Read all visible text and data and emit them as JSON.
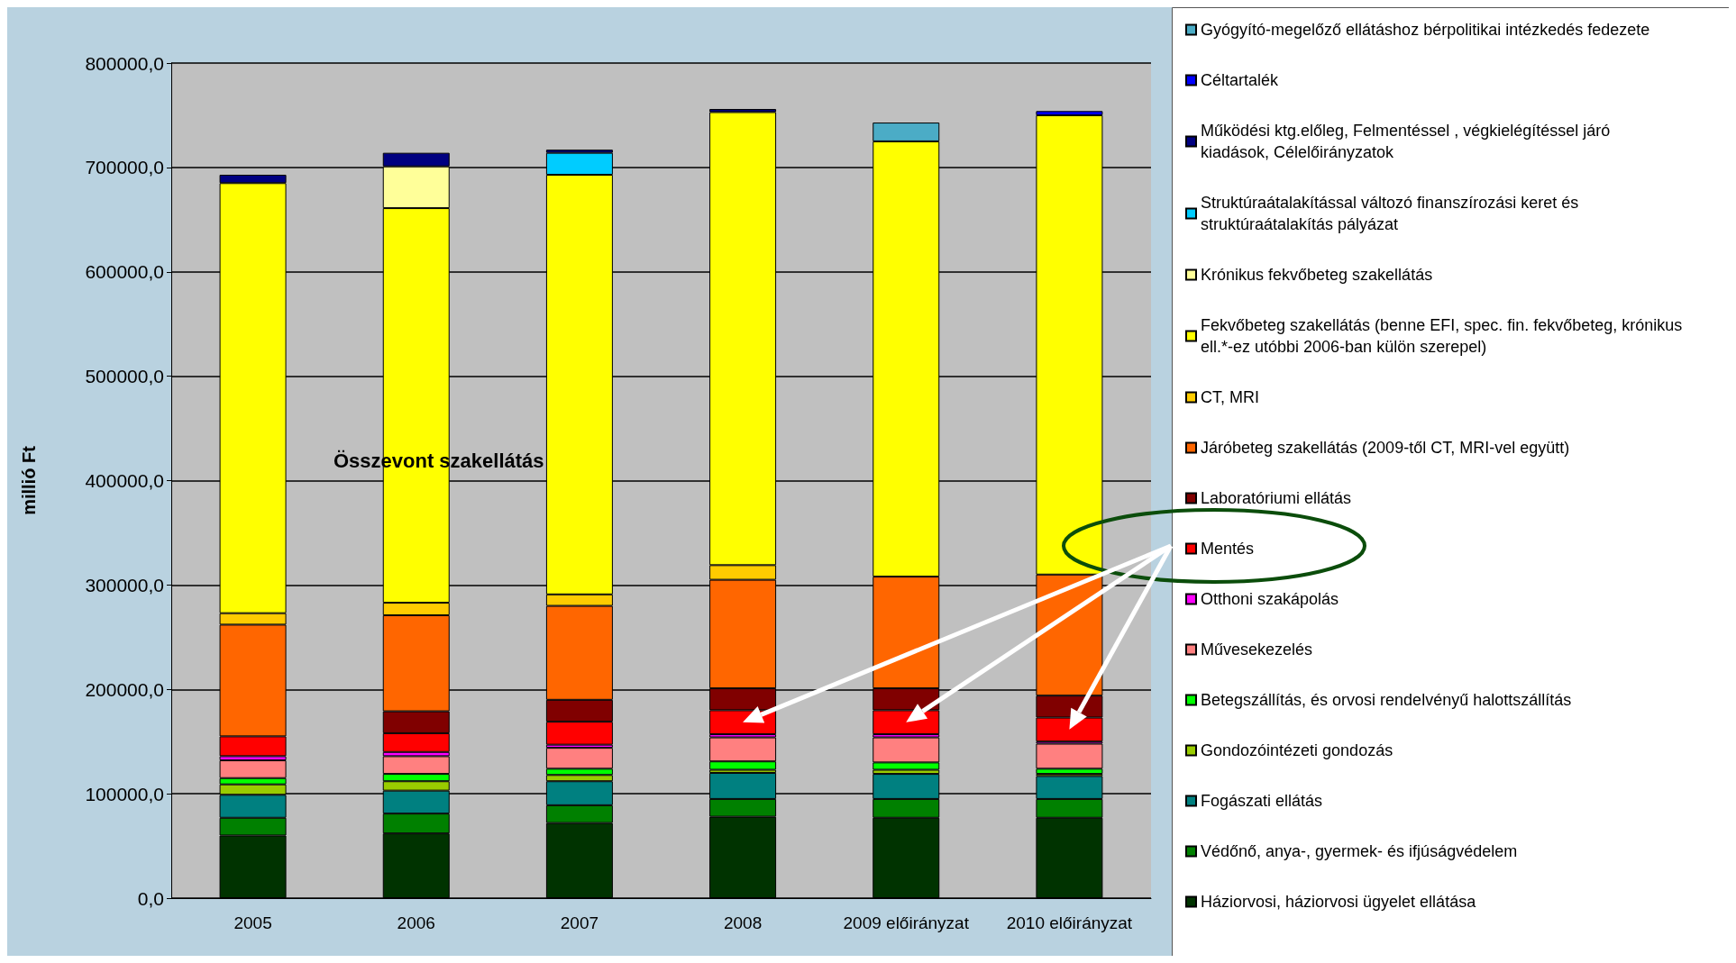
{
  "chart_data": {
    "type": "bar",
    "stacked": true,
    "ylabel": "millió Ft",
    "categories": [
      "2005",
      "2006",
      "2007",
      "2008",
      "2009 előirányzat",
      "2010 előirányzat"
    ],
    "ylim": [
      0,
      800000
    ],
    "yticks": [
      {
        "value": 0,
        "label": "0,0"
      },
      {
        "value": 100000,
        "label": "100000,0"
      },
      {
        "value": 200000,
        "label": "200000,0"
      },
      {
        "value": 300000,
        "label": "300000,0"
      },
      {
        "value": 400000,
        "label": "400000,0"
      },
      {
        "value": 500000,
        "label": "500000,0"
      },
      {
        "value": 600000,
        "label": "600000,0"
      },
      {
        "value": 700000,
        "label": "700000,0"
      },
      {
        "value": 800000,
        "label": "800000,0"
      }
    ],
    "grid": "y",
    "legend": "right",
    "annotations": [
      "Összevont szakellátás"
    ],
    "series": [
      {
        "name": "Háziorvosi, háziorvosi ügyelet ellátása",
        "color": "#003300",
        "values": [
          60000,
          62000,
          72000,
          78000,
          77000,
          77000
        ]
      },
      {
        "name": "Védőnő, anya-, gyermek- és ifjúságvédelem",
        "color": "#008000",
        "values": [
          17000,
          19000,
          17000,
          17000,
          18000,
          18000
        ]
      },
      {
        "name": "Fogászati ellátás",
        "color": "#008080",
        "values": [
          22000,
          22000,
          23000,
          25000,
          24000,
          22000
        ]
      },
      {
        "name": "Gondozóintézeti gondozás",
        "color": "#99cc00",
        "values": [
          10000,
          9000,
          6000,
          3000,
          4000,
          2000
        ]
      },
      {
        "name": "Betegszállítás, és orvosi rendelvényű halottszállítás",
        "color": "#00ff00",
        "values": [
          6000,
          7000,
          6000,
          8000,
          7000,
          5000
        ]
      },
      {
        "name": "Művesekezelés",
        "color": "#ff8080",
        "values": [
          17000,
          17000,
          20000,
          23000,
          24000,
          24000
        ]
      },
      {
        "name": "Otthoni szakápolás",
        "color": "#ff00ff",
        "values": [
          4000,
          4000,
          3000,
          3000,
          3000,
          2000
        ]
      },
      {
        "name": "Mentés",
        "color": "#ff0000",
        "values": [
          19000,
          18000,
          22000,
          23000,
          23000,
          23000
        ]
      },
      {
        "name": "Laboratóriumi ellátás",
        "color": "#800000",
        "values": [
          null,
          21000,
          21000,
          21000,
          21000,
          21000
        ]
      },
      {
        "name": "Járóbeteg szakellátás (2009-től CT, MRI-vel együtt)",
        "color": "#ff6600",
        "values": [
          107000,
          92000,
          90000,
          104000,
          107000,
          116000
        ]
      },
      {
        "name": "CT, MRI",
        "color": "#ffcc00",
        "values": [
          11000,
          12000,
          11000,
          14000,
          null,
          null
        ]
      },
      {
        "name": "Fekvőbeteg szakellátás (benne EFI, spec. fin. fekvőbeteg, krónikus ell.*-ez utóbbi 2006-ban külön szerepel)",
        "color": "#ffff00",
        "values": [
          412000,
          378000,
          402000,
          434000,
          417000,
          440000
        ]
      },
      {
        "name": "Krónikus fekvőbeteg szakellátás",
        "color": "#ffff99",
        "values": [
          null,
          40000,
          null,
          null,
          null,
          null
        ]
      },
      {
        "name": "Struktúraátalakítással változó finanszírozási keret és struktúraátalakítás pályázat",
        "color": "#00ccff",
        "values": [
          null,
          null,
          21000,
          null,
          null,
          null
        ]
      },
      {
        "name": "Működési ktg.előleg, Felmentéssel , végkielégítéssel járó kiadások, Célelőirányzatok",
        "color": "#000080",
        "values": [
          8000,
          13000,
          3000,
          3000,
          null,
          null
        ]
      },
      {
        "name": "Céltartalék",
        "color": "#0000ff",
        "values": [
          null,
          null,
          null,
          null,
          null,
          4000
        ]
      },
      {
        "name": "Gyógyító-megelőző ellátáshoz bérpolitikai intézkedés fedezete",
        "color": "#4bacc6",
        "values": [
          null,
          null,
          null,
          null,
          18000,
          null
        ]
      }
    ]
  }
}
